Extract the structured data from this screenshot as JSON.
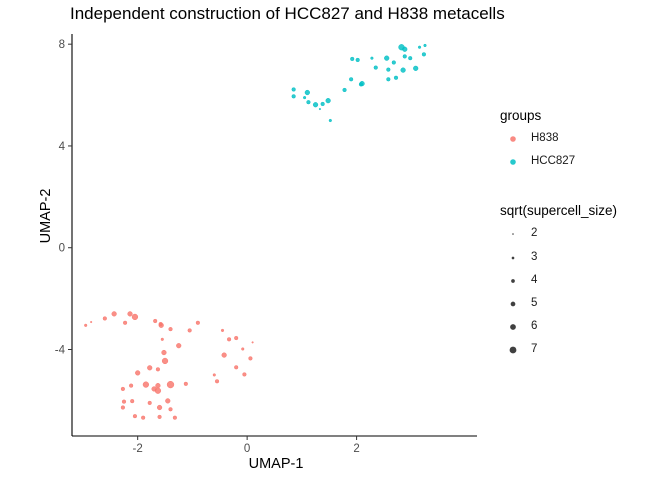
{
  "chart_data": {
    "type": "scatter",
    "title": "Independent construction of HCC827 and H838 metacells",
    "xlabel": "UMAP-1",
    "ylabel": "UMAP-2",
    "xlim": [
      -3.2,
      4.2
    ],
    "ylim": [
      -7.4,
      8.4
    ],
    "x_ticks": [
      -2,
      0,
      2
    ],
    "y_ticks": [
      -4,
      0,
      4,
      8
    ],
    "x_tick_labels": [
      "-2",
      "0",
      "2"
    ],
    "y_tick_labels": [
      "-4",
      "0",
      "4",
      "8"
    ],
    "grid": false,
    "legend_position": "right",
    "color_legend": {
      "title": "groups",
      "entries": [
        {
          "label": "H838",
          "color": "#F8766D"
        },
        {
          "label": "HCC827",
          "color": "#00BFC4"
        }
      ]
    },
    "size_legend": {
      "title": "sqrt(supercell_size)",
      "entries": [
        {
          "label": "2",
          "value": 2
        },
        {
          "label": "3",
          "value": 3
        },
        {
          "label": "4",
          "value": 4
        },
        {
          "label": "5",
          "value": 5
        },
        {
          "label": "6",
          "value": 6
        },
        {
          "label": "7",
          "value": 7
        }
      ]
    },
    "series": [
      {
        "name": "H838",
        "color": "#F8766D",
        "points": [
          [
            -2.95,
            -3.05,
            3
          ],
          [
            -2.85,
            -2.92,
            2
          ],
          [
            -2.6,
            -2.78,
            4
          ],
          [
            -2.43,
            -2.6,
            5
          ],
          [
            -2.23,
            -2.95,
            4
          ],
          [
            -2.14,
            -2.6,
            5
          ],
          [
            -2.05,
            -2.72,
            6
          ],
          [
            -1.68,
            -2.88,
            4
          ],
          [
            -1.58,
            -3.0,
            4
          ],
          [
            -1.57,
            -3.05,
            5
          ],
          [
            -1.55,
            -3.6,
            3
          ],
          [
            -1.52,
            -4.12,
            5
          ],
          [
            -1.4,
            -3.2,
            4
          ],
          [
            -1.25,
            -3.85,
            5
          ],
          [
            -1.05,
            -3.25,
            4
          ],
          [
            -0.9,
            -2.95,
            4
          ],
          [
            -0.45,
            -3.25,
            3
          ],
          [
            -0.33,
            -3.6,
            4
          ],
          [
            -0.42,
            -4.22,
            5
          ],
          [
            -0.2,
            -3.55,
            4
          ],
          [
            -0.08,
            -3.98,
            3
          ],
          [
            0.1,
            -3.72,
            2
          ],
          [
            0.06,
            -4.35,
            4
          ],
          [
            -0.2,
            -4.7,
            4
          ],
          [
            -0.05,
            -4.98,
            4
          ],
          [
            -0.6,
            -5.0,
            3
          ],
          [
            -0.55,
            -5.25,
            4
          ],
          [
            -1.5,
            -4.45,
            6
          ],
          [
            -1.63,
            -4.78,
            4
          ],
          [
            -1.78,
            -4.72,
            5
          ],
          [
            -2.0,
            -4.92,
            5
          ],
          [
            -2.12,
            -5.42,
            4
          ],
          [
            -1.85,
            -5.38,
            6
          ],
          [
            -1.63,
            -5.42,
            5
          ],
          [
            -1.4,
            -5.38,
            7
          ],
          [
            -1.12,
            -5.35,
            4
          ],
          [
            -1.7,
            -5.55,
            5
          ],
          [
            -2.27,
            -5.55,
            4
          ],
          [
            -2.1,
            -6.03,
            4
          ],
          [
            -1.63,
            -5.62,
            6
          ],
          [
            -1.45,
            -6.02,
            5
          ],
          [
            -2.25,
            -6.05,
            4
          ],
          [
            -2.27,
            -6.28,
            4
          ],
          [
            -1.6,
            -6.28,
            5
          ],
          [
            -1.4,
            -6.35,
            4
          ],
          [
            -2.05,
            -6.62,
            4
          ],
          [
            -1.9,
            -6.68,
            4
          ],
          [
            -1.6,
            -6.65,
            4
          ],
          [
            -1.32,
            -6.68,
            4
          ],
          [
            -1.78,
            -6.1,
            4
          ]
        ]
      },
      {
        "name": "HCC827",
        "color": "#00BFC4",
        "points": [
          [
            0.85,
            6.22,
            4
          ],
          [
            0.85,
            5.95,
            4
          ],
          [
            1.05,
            5.9,
            3
          ],
          [
            1.1,
            6.1,
            5
          ],
          [
            1.12,
            5.72,
            4
          ],
          [
            1.25,
            5.62,
            5
          ],
          [
            1.38,
            5.65,
            4
          ],
          [
            1.48,
            5.78,
            5
          ],
          [
            1.33,
            5.45,
            2
          ],
          [
            1.52,
            5.0,
            3
          ],
          [
            1.78,
            6.2,
            4
          ],
          [
            1.9,
            6.62,
            4
          ],
          [
            2.08,
            6.42,
            4
          ],
          [
            2.1,
            6.45,
            5
          ],
          [
            1.92,
            7.42,
            4
          ],
          [
            2.02,
            7.38,
            4
          ],
          [
            2.28,
            7.45,
            3
          ],
          [
            2.35,
            7.08,
            4
          ],
          [
            2.55,
            7.45,
            5
          ],
          [
            2.58,
            7.0,
            4
          ],
          [
            2.58,
            6.62,
            4
          ],
          [
            2.68,
            7.28,
            4
          ],
          [
            2.72,
            6.68,
            4
          ],
          [
            2.85,
            6.98,
            5
          ],
          [
            2.88,
            7.52,
            4
          ],
          [
            2.88,
            7.8,
            5
          ],
          [
            2.82,
            7.88,
            6
          ],
          [
            2.98,
            7.45,
            4
          ],
          [
            3.08,
            7.05,
            5
          ],
          [
            3.15,
            7.88,
            3
          ],
          [
            3.25,
            7.95,
            3
          ],
          [
            3.23,
            7.6,
            4
          ]
        ]
      }
    ]
  }
}
